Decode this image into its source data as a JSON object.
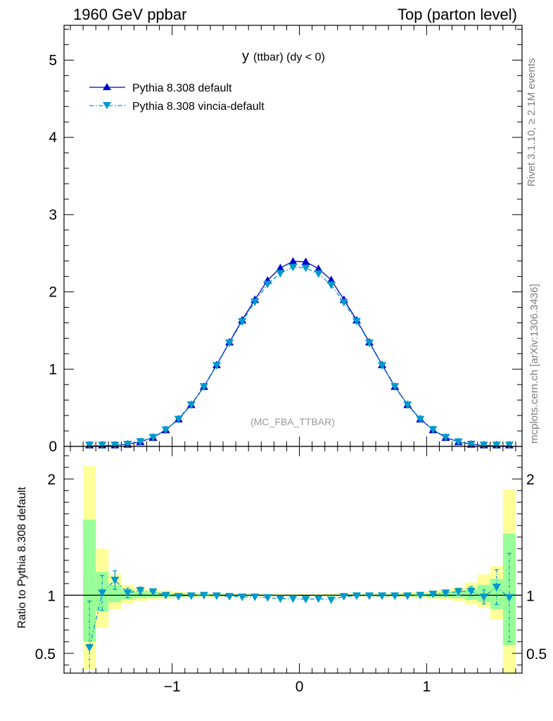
{
  "header": {
    "left": "1960 GeV ppbar",
    "right": "Top (parton level)"
  },
  "side_labels": {
    "rivet": "Rivet 3.1.10, ≥ 2.1M events",
    "mcplots": "mcplots.cern.ch [arXiv:1306.3436]"
  },
  "colors": {
    "pythia_default": "#0000cc",
    "vincia_default": "#0099cc",
    "band_inner": "#99ff99",
    "band_outer": "#ffff99"
  },
  "chart_data": [
    {
      "type": "line",
      "title": "y (ttbar) (dy < 0)",
      "title_main": "y",
      "title_rest": "(ttbar) (dy < 0)",
      "annotation": "(MC_FBA_TTBAR)",
      "xlim": [
        -1.85,
        1.75
      ],
      "ylim": [
        0,
        5.45
      ],
      "yticks": [
        0,
        1,
        2,
        3,
        4,
        5
      ],
      "ytick_labels": [
        "0",
        "1",
        "2",
        "3",
        "4",
        "5"
      ],
      "x": [
        -1.65,
        -1.55,
        -1.45,
        -1.35,
        -1.25,
        -1.15,
        -1.05,
        -0.95,
        -0.85,
        -0.75,
        -0.65,
        -0.55,
        -0.45,
        -0.35,
        -0.25,
        -0.15,
        -0.05,
        0.05,
        0.15,
        0.25,
        0.35,
        0.45,
        0.55,
        0.65,
        0.75,
        0.85,
        0.95,
        1.05,
        1.15,
        1.25,
        1.35,
        1.45,
        1.55,
        1.65
      ],
      "series": [
        {
          "name": "Pythia 8.308 default",
          "marker": "triangle-up",
          "linestyle": "solid",
          "values": [
            0.005,
            0.008,
            0.014,
            0.028,
            0.06,
            0.115,
            0.215,
            0.355,
            0.54,
            0.775,
            1.055,
            1.35,
            1.635,
            1.9,
            2.15,
            2.31,
            2.395,
            2.39,
            2.3,
            2.155,
            1.9,
            1.635,
            1.35,
            1.055,
            0.775,
            0.54,
            0.355,
            0.215,
            0.115,
            0.058,
            0.028,
            0.013,
            0.007,
            0.005
          ]
        },
        {
          "name": "Pythia 8.308 vincia-default",
          "marker": "triangle-down",
          "linestyle": "dash-dot",
          "values": [
            0.003,
            0.009,
            0.016,
            0.029,
            0.062,
            0.118,
            0.215,
            0.352,
            0.538,
            0.775,
            1.048,
            1.34,
            1.615,
            1.87,
            2.1,
            2.24,
            2.32,
            2.31,
            2.235,
            2.09,
            1.865,
            1.62,
            1.34,
            1.048,
            0.775,
            0.538,
            0.352,
            0.218,
            0.118,
            0.06,
            0.029,
            0.014,
            0.008,
            0.005
          ]
        }
      ]
    },
    {
      "type": "line",
      "ylabel": "Ratio to Pythia 8.308 default",
      "xlim": [
        -1.85,
        1.75
      ],
      "ylim": [
        0.33,
        2.28
      ],
      "xticks": [
        -1,
        0,
        1
      ],
      "xtick_labels": [
        "−1",
        "0",
        "1"
      ],
      "yticks": [
        0.5,
        1,
        2
      ],
      "ytick_labels": [
        "0.5",
        "1",
        "2"
      ],
      "x": [
        -1.65,
        -1.55,
        -1.45,
        -1.35,
        -1.25,
        -1.15,
        -1.05,
        -0.95,
        -0.85,
        -0.75,
        -0.65,
        -0.55,
        -0.45,
        -0.35,
        -0.25,
        -0.15,
        -0.05,
        0.05,
        0.15,
        0.25,
        0.35,
        0.45,
        0.55,
        0.65,
        0.75,
        0.85,
        0.95,
        1.05,
        1.15,
        1.25,
        1.35,
        1.45,
        1.55,
        1.65
      ],
      "band_outer": [
        [
          0.36,
          2.11
        ],
        [
          0.72,
          1.4
        ],
        [
          0.88,
          1.18
        ],
        [
          0.93,
          1.09
        ],
        [
          0.95,
          1.06
        ],
        [
          0.96,
          1.05
        ],
        [
          0.97,
          1.04
        ],
        [
          0.975,
          1.03
        ],
        [
          0.98,
          1.025
        ],
        [
          0.985,
          1.02
        ],
        [
          0.985,
          1.018
        ],
        [
          0.988,
          1.015
        ],
        [
          0.988,
          1.013
        ],
        [
          0.99,
          1.012
        ],
        [
          0.99,
          1.012
        ],
        [
          0.99,
          1.01
        ],
        [
          0.99,
          1.01
        ],
        [
          0.99,
          1.01
        ],
        [
          0.99,
          1.01
        ],
        [
          0.99,
          1.012
        ],
        [
          0.99,
          1.012
        ],
        [
          0.988,
          1.013
        ],
        [
          0.988,
          1.015
        ],
        [
          0.985,
          1.018
        ],
        [
          0.985,
          1.02
        ],
        [
          0.98,
          1.025
        ],
        [
          0.975,
          1.03
        ],
        [
          0.97,
          1.04
        ],
        [
          0.96,
          1.05
        ],
        [
          0.95,
          1.07
        ],
        [
          0.92,
          1.11
        ],
        [
          0.89,
          1.18
        ],
        [
          0.79,
          1.25
        ],
        [
          0.33,
          1.91
        ]
      ],
      "band_inner": [
        [
          0.6,
          1.65
        ],
        [
          0.86,
          1.2
        ],
        [
          0.94,
          1.09
        ],
        [
          0.965,
          1.045
        ],
        [
          0.975,
          1.03
        ],
        [
          0.98,
          1.025
        ],
        [
          0.985,
          1.02
        ],
        [
          0.988,
          1.015
        ],
        [
          0.99,
          1.012
        ],
        [
          0.992,
          1.01
        ],
        [
          0.992,
          1.009
        ],
        [
          0.994,
          1.008
        ],
        [
          0.994,
          1.007
        ],
        [
          0.995,
          1.006
        ],
        [
          0.995,
          1.006
        ],
        [
          0.995,
          1.005
        ],
        [
          0.995,
          1.005
        ],
        [
          0.995,
          1.005
        ],
        [
          0.995,
          1.005
        ],
        [
          0.995,
          1.006
        ],
        [
          0.995,
          1.006
        ],
        [
          0.994,
          1.007
        ],
        [
          0.994,
          1.008
        ],
        [
          0.992,
          1.009
        ],
        [
          0.992,
          1.01
        ],
        [
          0.99,
          1.012
        ],
        [
          0.988,
          1.015
        ],
        [
          0.985,
          1.02
        ],
        [
          0.98,
          1.025
        ],
        [
          0.975,
          1.035
        ],
        [
          0.96,
          1.055
        ],
        [
          0.94,
          1.09
        ],
        [
          0.88,
          1.14
        ],
        [
          0.57,
          1.53
        ]
      ],
      "series": [
        {
          "name": "Pythia 8.308 vincia-default / Pythia 8.308 default",
          "marker": "triangle-down",
          "linestyle": "dash-dot",
          "values": [
            0.55,
            1.02,
            1.13,
            1.02,
            1.04,
            1.03,
            1.0,
            0.99,
            0.995,
            1.0,
            0.995,
            0.99,
            0.985,
            0.985,
            0.98,
            0.97,
            0.97,
            0.965,
            0.97,
            0.96,
            0.99,
            0.995,
            0.995,
            0.995,
            0.995,
            0.995,
            1.0,
            1.01,
            1.02,
            1.03,
            1.035,
            0.985,
            1.07,
            0.98
          ],
          "errors": [
            0.4,
            0.15,
            0.08,
            0.04,
            0.03,
            0.02,
            0.01,
            0.01,
            0.01,
            0.01,
            0.01,
            0.01,
            0.01,
            0.01,
            0.01,
            0.01,
            0.01,
            0.01,
            0.01,
            0.01,
            0.01,
            0.01,
            0.01,
            0.01,
            0.01,
            0.01,
            0.01,
            0.01,
            0.02,
            0.03,
            0.04,
            0.06,
            0.15,
            0.38
          ]
        }
      ]
    }
  ]
}
